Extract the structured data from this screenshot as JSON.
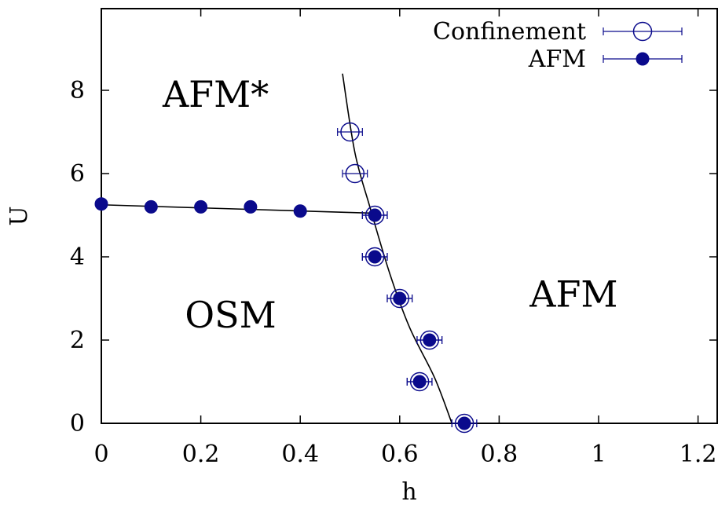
{
  "chart_data": {
    "type": "scatter",
    "xlabel": "h",
    "ylabel": "U",
    "xlim": [
      0,
      1.25
    ],
    "ylim": [
      0,
      10
    ],
    "x_ticks": [
      "0",
      "0.2",
      "0.4",
      "0.6",
      "0.8",
      "1",
      "1.2"
    ],
    "y_ticks": [
      "0",
      "2",
      "4",
      "6",
      "8"
    ],
    "grid": false,
    "legend_position": "top-right",
    "series": [
      {
        "name": "Confinement",
        "marker": "open-circle",
        "color": "#0a0a8c",
        "points": [
          {
            "x": 0.5,
            "y": 7,
            "xerr": 0.025
          },
          {
            "x": 0.51,
            "y": 6,
            "xerr": 0.025
          },
          {
            "x": 0.55,
            "y": 5,
            "xerr": 0.025
          },
          {
            "x": 0.55,
            "y": 4,
            "xerr": 0.025
          },
          {
            "x": 0.6,
            "y": 3,
            "xerr": 0.025
          },
          {
            "x": 0.66,
            "y": 2,
            "xerr": 0.025
          },
          {
            "x": 0.64,
            "y": 1,
            "xerr": 0.025
          },
          {
            "x": 0.73,
            "y": 0,
            "xerr": 0.025
          }
        ]
      },
      {
        "name": "AFM",
        "marker": "filled-circle",
        "color": "#0a0a8c",
        "points": [
          {
            "x": 0.0,
            "y": 5.27,
            "xerr": 0
          },
          {
            "x": 0.1,
            "y": 5.2,
            "xerr": 0
          },
          {
            "x": 0.2,
            "y": 5.2,
            "xerr": 0
          },
          {
            "x": 0.3,
            "y": 5.2,
            "xerr": 0
          },
          {
            "x": 0.4,
            "y": 5.1,
            "xerr": 0
          },
          {
            "x": 0.55,
            "y": 5,
            "xerr": 0.025
          },
          {
            "x": 0.55,
            "y": 4,
            "xerr": 0.025
          },
          {
            "x": 0.6,
            "y": 3,
            "xerr": 0.025
          },
          {
            "x": 0.66,
            "y": 2,
            "xerr": 0.025
          },
          {
            "x": 0.64,
            "y": 1,
            "xerr": 0.025
          },
          {
            "x": 0.73,
            "y": 0,
            "xerr": 0.025
          }
        ]
      }
    ],
    "boundary_lines": [
      {
        "points": [
          [
            0.0,
            5.25
          ],
          [
            0.54,
            5.05
          ]
        ]
      },
      {
        "points": [
          [
            0.485,
            8.4
          ],
          [
            0.51,
            6.5
          ],
          [
            0.54,
            5.2
          ],
          [
            0.58,
            3.6
          ],
          [
            0.62,
            2.3
          ],
          [
            0.67,
            1.1
          ],
          [
            0.705,
            0.0
          ]
        ]
      }
    ],
    "annotations": [
      {
        "text": "AFM*",
        "x": 0.23,
        "y": 7.6
      },
      {
        "text": "OSM",
        "x": 0.26,
        "y": 2.3
      },
      {
        "text": "AFM",
        "x": 0.95,
        "y": 2.8
      }
    ]
  }
}
